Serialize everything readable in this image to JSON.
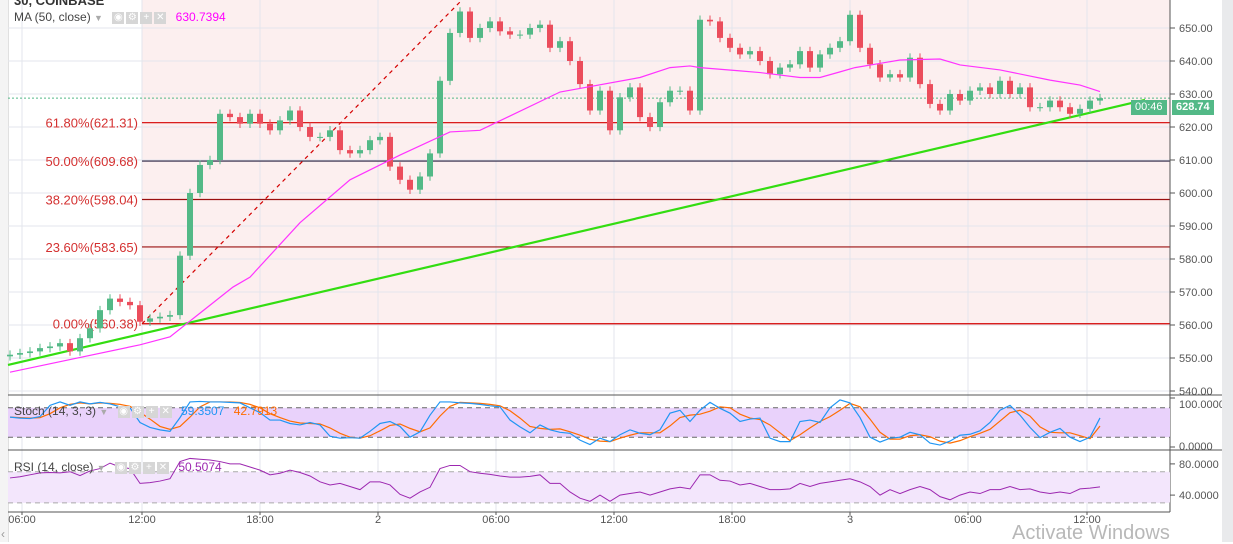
{
  "header": {
    "symbol_partial": "30, COINBASE"
  },
  "watermark": "Activate Windows",
  "colors": {
    "up": "#53b987",
    "down": "#eb4d5c",
    "ma": "#ff33ff",
    "trend": "#33dd11",
    "fib_bg": "#fcefef",
    "stoch_k": "#2196f3",
    "stoch_d": "#ff6d00",
    "rsi": "#9c27b0",
    "stoch_fill": "#e9d2fb",
    "rsi_fill": "#f3e6fc"
  },
  "chart_data": {
    "type": "candlestick",
    "title": "30, COINBASE",
    "price_axis": {
      "ticks": [
        650,
        640,
        630,
        620,
        610,
        600,
        590,
        580,
        570,
        560,
        550,
        540
      ],
      "labels": [
        "650.00",
        "640.00",
        "630.00",
        "620.00",
        "610.00",
        "600.00",
        "590.00",
        "580.00",
        "570.00",
        "560.00",
        "550.00",
        "540.00"
      ]
    },
    "time_labels": [
      {
        "i": 1.2,
        "label": "06:00"
      },
      {
        "i": 13.2,
        "label": "12:00"
      },
      {
        "i": 25,
        "label": "18:00"
      },
      {
        "i": 36.8,
        "label": "2"
      },
      {
        "i": 48.6,
        "label": "06:00"
      },
      {
        "i": 60.4,
        "label": "12:00"
      },
      {
        "i": 72.2,
        "label": "18:00"
      },
      {
        "i": 84,
        "label": "3"
      },
      {
        "i": 95.8,
        "label": "06:00"
      },
      {
        "i": 107.7,
        "label": "12:00"
      }
    ],
    "first_open": 550.5,
    "closes": [
      551,
      551.5,
      552,
      553,
      553.5,
      554.5,
      552,
      556,
      559,
      564.5,
      568,
      567,
      566,
      561,
      562,
      562.5,
      563,
      581,
      600,
      608.5,
      610,
      624,
      623,
      621,
      624,
      621,
      619,
      622,
      625,
      620,
      617,
      617,
      619,
      613,
      612,
      613,
      616,
      617,
      608,
      604,
      601,
      605,
      612,
      634,
      648.5,
      655,
      647,
      650,
      652,
      649,
      648,
      648,
      650,
      651,
      644,
      646,
      640,
      633,
      625,
      631,
      619,
      629,
      632,
      623,
      620,
      627.5,
      631,
      631,
      625,
      652.5,
      652,
      647,
      644,
      642,
      643,
      640,
      636,
      638,
      639,
      643,
      638,
      642,
      644,
      646,
      654,
      644,
      639,
      635,
      636,
      635,
      641,
      633,
      627,
      625,
      630,
      628,
      631,
      632,
      630,
      634,
      630,
      632,
      626,
      626,
      628,
      626,
      624,
      625.5,
      628,
      628.74
    ],
    "current_price": {
      "value": 628.74,
      "label": "628.74",
      "countdown": "00:46"
    },
    "ma": {
      "label": "MA (50, close)",
      "value": "630.7394",
      "points": [
        [
          0,
          545.7
        ],
        [
          13,
          554
        ],
        [
          16,
          556.4
        ],
        [
          19,
          563.6
        ],
        [
          22.3,
          571.5
        ],
        [
          24,
          574.5
        ],
        [
          29,
          591
        ],
        [
          34,
          604
        ],
        [
          39,
          611.5
        ],
        [
          44,
          618.5
        ],
        [
          47,
          619
        ],
        [
          55,
          630.6
        ],
        [
          63,
          635
        ],
        [
          66,
          638
        ],
        [
          68,
          638.5
        ],
        [
          69,
          638
        ],
        [
          73,
          637
        ],
        [
          75,
          636.5
        ],
        [
          79,
          635
        ],
        [
          81,
          635
        ],
        [
          83,
          636.7
        ],
        [
          84.5,
          638
        ],
        [
          89,
          640.3
        ],
        [
          93,
          640.6
        ],
        [
          95,
          638.8
        ],
        [
          99,
          637.3
        ],
        [
          104,
          634.2
        ],
        [
          107,
          632.7
        ],
        [
          109,
          630.74
        ]
      ]
    },
    "fib_levels": [
      {
        "label": "61.80%(621.31)",
        "price": 621.31,
        "color": "#d40000"
      },
      {
        "label": "50.00%(609.68)",
        "price": 609.68,
        "color": "#2a2040"
      },
      {
        "label": "38.20%(598.04)",
        "price": 598.04,
        "color": "#9a1010"
      },
      {
        "label": "23.60%(583.65)",
        "price": 583.65,
        "color": "#9a1010"
      },
      {
        "label": "0.00%(560.38)",
        "price": 560.38,
        "color": "#d40000"
      }
    ],
    "fib_start_i": 13.2,
    "fib_diagonal": {
      "from": [
        13.2,
        560.38
      ],
      "to": [
        45.2,
        658.5
      ]
    },
    "trendline": {
      "from": [
        -0.2,
        547.9
      ],
      "to": [
        113.5,
        628.2
      ]
    },
    "stoch": {
      "label": "Stoch (14, 3, 3)",
      "k_value": "59.3507",
      "d_value": "42.7913",
      "bands": [
        20,
        80
      ],
      "axis_labels": [
        "100.0000",
        "0.0000"
      ],
      "k": [
        61,
        59,
        58,
        62,
        85,
        92,
        85,
        92,
        88,
        91,
        88,
        82,
        80,
        50,
        40,
        35,
        32,
        60,
        92,
        93,
        92,
        92,
        91,
        90,
        80,
        70,
        55,
        55,
        48,
        45,
        50,
        45,
        22,
        18,
        19,
        18,
        32,
        48,
        52,
        42,
        20,
        31,
        65,
        92,
        92,
        90,
        89,
        87,
        84,
        82,
        55,
        41,
        29,
        45,
        35,
        30,
        28,
        14,
        5,
        18,
        11,
        25,
        35,
        28,
        25,
        35,
        69,
        75,
        52,
        75,
        91,
        79,
        69,
        52,
        57,
        59,
        18,
        11,
        11,
        52,
        55,
        50,
        80,
        96,
        90,
        60,
        20,
        10,
        18,
        20,
        30,
        25,
        8,
        4,
        12,
        24,
        26,
        33,
        50,
        75,
        85,
        65,
        40,
        19,
        30,
        38,
        20,
        11,
        20,
        59.35
      ],
      "d": [
        61,
        60,
        59,
        60,
        68,
        80,
        87,
        90,
        88,
        90,
        89,
        87,
        83,
        71,
        57,
        42,
        36,
        42,
        61,
        82,
        92,
        92,
        92,
        91,
        87,
        80,
        68,
        60,
        53,
        49,
        48,
        47,
        39,
        28,
        20,
        18,
        23,
        33,
        44,
        47,
        38,
        31,
        39,
        63,
        83,
        91,
        90,
        89,
        87,
        84,
        74,
        59,
        42,
        38,
        36,
        37,
        31,
        24,
        16,
        12,
        11,
        18,
        24,
        29,
        29,
        29,
        43,
        60,
        65,
        67,
        73,
        82,
        80,
        67,
        59,
        56,
        45,
        29,
        13,
        25,
        39,
        52,
        62,
        75,
        89,
        82,
        57,
        30,
        16,
        16,
        23,
        25,
        21,
        12,
        8,
        13,
        21,
        28,
        36,
        53,
        70,
        75,
        63,
        41,
        30,
        29,
        29,
        23,
        17,
        42.79
      ]
    },
    "rsi": {
      "label": "RSI (14, close)",
      "value": "50.5074",
      "bands": [
        30,
        70
      ],
      "axis_labels": [
        "80.0000",
        "40.0000"
      ],
      "values": [
        62,
        63.5,
        66,
        68.5,
        69,
        68.5,
        70,
        65,
        71,
        74,
        81,
        76,
        74,
        55,
        56,
        58,
        61,
        83,
        87,
        86,
        85,
        83,
        80,
        80,
        76,
        72,
        66,
        68,
        72,
        69,
        64.5,
        57,
        53,
        55,
        51,
        47,
        57,
        57,
        53,
        41,
        36,
        44,
        50,
        74,
        78,
        78,
        70,
        68,
        66.5,
        64.5,
        63,
        63,
        64,
        66,
        55,
        55,
        44,
        36,
        32,
        40,
        32,
        40,
        42,
        44,
        40,
        44,
        48,
        50,
        48,
        66,
        66,
        59,
        58,
        53,
        55,
        51,
        47,
        47,
        48,
        55,
        51,
        55,
        57,
        59,
        61,
        57,
        51,
        40,
        47,
        42,
        47,
        51,
        47,
        38,
        34,
        40,
        44,
        42,
        47,
        47,
        51,
        47,
        48,
        44,
        42,
        44,
        42,
        48,
        49,
        50.5074
      ]
    }
  }
}
